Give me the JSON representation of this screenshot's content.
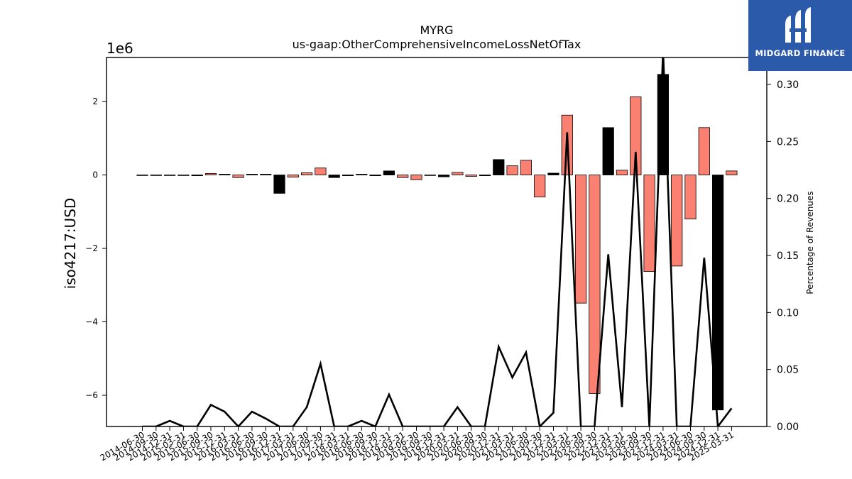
{
  "chart_data": {
    "type": "bar",
    "title": "MYRG",
    "subtitle": "us-gaap:OtherComprehensiveIncomeLossNetOfTax",
    "ylabel": "iso4217:USD",
    "y_offset_label": "1e6",
    "y2label": "Percentage of Revenues",
    "ylim": [
      -6.85,
      3.2
    ],
    "y2lim": [
      0.0,
      0.3237
    ],
    "yticks": [
      "-6",
      "-4",
      "-2",
      "0",
      "2"
    ],
    "y2ticks": [
      "0.00",
      "0.05",
      "0.10",
      "0.15",
      "0.20",
      "0.25",
      "0.30"
    ],
    "categories": [
      "2014-06-30",
      "2014-09-30",
      "2014-12-31",
      "2015-03-31",
      "2015-06-30",
      "2015-09-30",
      "2015-12-31",
      "2016-03-31",
      "2016-06-30",
      "2016-09-30",
      "2016-12-31",
      "2017-03-31",
      "2017-06-30",
      "2017-09-30",
      "2017-12-31",
      "2018-03-31",
      "2018-06-30",
      "2018-09-30",
      "2018-12-31",
      "2019-03-31",
      "2019-06-30",
      "2019-09-30",
      "2019-12-31",
      "2020-03-31",
      "2020-06-30",
      "2020-09-30",
      "2020-12-31",
      "2021-03-31",
      "2021-06-30",
      "2021-09-30",
      "2021-12-31",
      "2022-03-31",
      "2022-06-30",
      "2022-09-30",
      "2022-12-31",
      "2023-03-31",
      "2023-06-30",
      "2023-09-30",
      "2023-12-31",
      "2024-03-31",
      "2024-06-30",
      "2024-09-30",
      "2024-12-31",
      "2025-03-31"
    ],
    "series": [
      {
        "type": "bar",
        "values": [
          -0.01,
          -0.01,
          -0.01,
          -0.01,
          -0.02,
          0.04,
          0.02,
          -0.07,
          0.02,
          0.02,
          -0.5,
          -0.06,
          0.06,
          0.19,
          -0.07,
          -0.02,
          0.02,
          -0.02,
          0.11,
          -0.07,
          -0.13,
          -0.01,
          -0.05,
          0.07,
          -0.04,
          -0.02,
          0.42,
          0.25,
          0.4,
          -0.6,
          0.05,
          1.63,
          -3.49,
          -5.95,
          1.29,
          0.13,
          2.13,
          -2.63,
          2.74,
          -2.48,
          -1.2,
          1.29,
          -6.4,
          0.11
        ],
        "colors": [
          "#000000",
          "#000000",
          "#000000",
          "#000000",
          "#000000",
          "#fa8072",
          "#000000",
          "#fa8072",
          "#000000",
          "#000000",
          "#000000",
          "#fa8072",
          "#fa8072",
          "#fa8072",
          "#000000",
          "#000000",
          "#000000",
          "#000000",
          "#000000",
          "#fa8072",
          "#fa8072",
          "#000000",
          "#000000",
          "#fa8072",
          "#fa8072",
          "#000000",
          "#000000",
          "#fa8072",
          "#fa8072",
          "#fa8072",
          "#000000",
          "#fa8072",
          "#fa8072",
          "#fa8072",
          "#000000",
          "#fa8072",
          "#fa8072",
          "#fa8072",
          "#000000",
          "#fa8072",
          "#fa8072",
          "#fa8072",
          "#000000",
          "#fa8072"
        ]
      },
      {
        "type": "line",
        "axis": "right",
        "values": [
          0.0,
          0.0,
          0.005,
          0.0,
          0.0,
          0.019,
          0.013,
          0.0,
          0.013,
          0.007,
          0.0,
          0.0,
          0.017,
          0.055,
          0.0,
          0.0,
          0.005,
          0.0,
          0.028,
          0.0,
          0.0,
          0.0,
          0.0,
          0.017,
          0.0,
          0.0,
          0.07,
          0.043,
          0.065,
          0.0,
          0.012,
          0.258,
          0.0,
          0.0,
          0.151,
          0.017,
          0.241,
          0.0,
          0.33,
          0.0,
          0.0,
          0.148,
          0.0,
          0.016
        ]
      }
    ],
    "grid": false
  },
  "logo": {
    "text": "MIDGARD FINANCE"
  }
}
